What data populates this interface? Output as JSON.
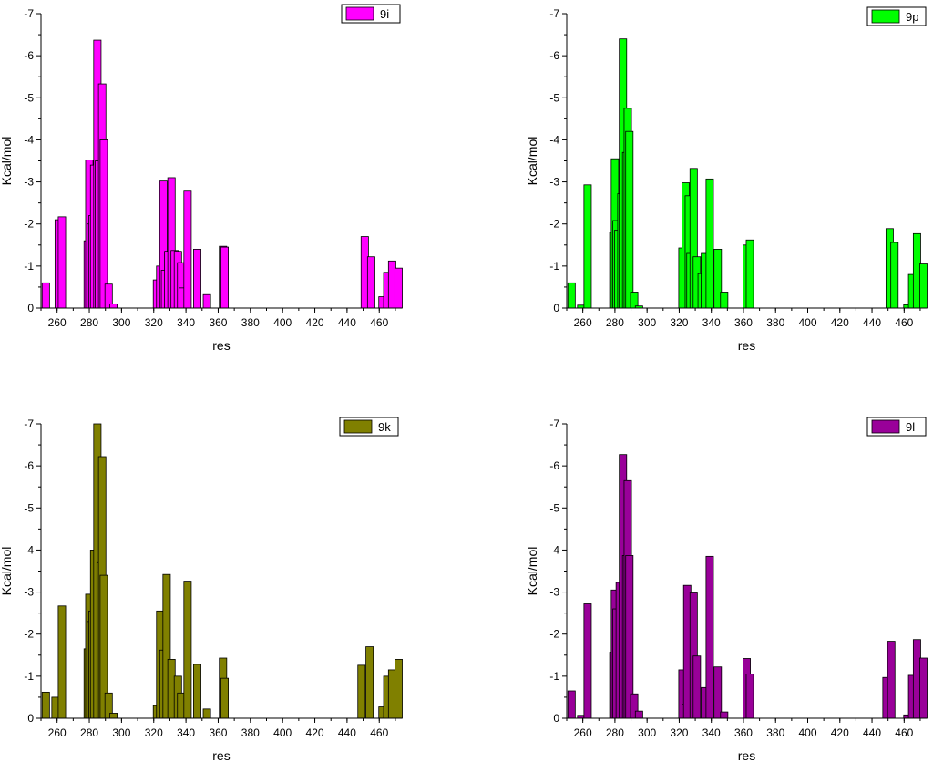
{
  "chart_data": [
    {
      "type": "bar",
      "legend": "9i",
      "legend_position": "top-right",
      "color": "#ff00ff",
      "xlabel": "res",
      "ylabel": "Kcal/mol",
      "xlim": [
        250,
        474
      ],
      "ylim": [
        0,
        -7
      ],
      "xticks": [
        "260",
        "280",
        "300",
        "320",
        "340",
        "360",
        "380",
        "400",
        "420",
        "440",
        "460"
      ],
      "yticks": [
        "0",
        "-1",
        "-2",
        "-3",
        "-4",
        "-5",
        "-6",
        "-7"
      ],
      "bars": [
        {
          "x": 253,
          "y": -0.6
        },
        {
          "x": 261,
          "y": -2.1
        },
        {
          "x": 263,
          "y": -2.17
        },
        {
          "x": 279,
          "y": -1.6
        },
        {
          "x": 280,
          "y": -3.52
        },
        {
          "x": 281,
          "y": -2.0
        },
        {
          "x": 282,
          "y": -2.2
        },
        {
          "x": 283,
          "y": -3.4
        },
        {
          "x": 285,
          "y": -6.37
        },
        {
          "x": 286,
          "y": -3.5
        },
        {
          "x": 288,
          "y": -5.33
        },
        {
          "x": 289,
          "y": -4.0
        },
        {
          "x": 292,
          "y": -0.57
        },
        {
          "x": 295,
          "y": -0.1
        },
        {
          "x": 322,
          "y": -0.67
        },
        {
          "x": 324,
          "y": -1.0
        },
        {
          "x": 326,
          "y": -3.02
        },
        {
          "x": 327,
          "y": -0.9
        },
        {
          "x": 329,
          "y": -1.35
        },
        {
          "x": 331,
          "y": -3.1
        },
        {
          "x": 333,
          "y": -1.37
        },
        {
          "x": 335,
          "y": -1.35
        },
        {
          "x": 337,
          "y": -1.08
        },
        {
          "x": 338,
          "y": -0.48
        },
        {
          "x": 341,
          "y": -2.78
        },
        {
          "x": 347,
          "y": -1.4
        },
        {
          "x": 353,
          "y": -0.32
        },
        {
          "x": 363,
          "y": -1.47
        },
        {
          "x": 364,
          "y": -1.45
        },
        {
          "x": 451,
          "y": -1.7
        },
        {
          "x": 455,
          "y": -1.22
        },
        {
          "x": 462,
          "y": -0.27
        },
        {
          "x": 465,
          "y": -0.85
        },
        {
          "x": 468,
          "y": -1.12
        },
        {
          "x": 472,
          "y": -0.95
        }
      ]
    },
    {
      "type": "bar",
      "legend": "9p",
      "legend_position": "top-right",
      "color": "#00ff00",
      "xlabel": "res",
      "ylabel": "Kcal/mol",
      "xlim": [
        250,
        474
      ],
      "ylim": [
        0,
        -7
      ],
      "xticks": [
        "260",
        "280",
        "300",
        "320",
        "340",
        "360",
        "380",
        "400",
        "420",
        "440",
        "460"
      ],
      "yticks": [
        "0",
        "-1",
        "-2",
        "-3",
        "-4",
        "-5",
        "-6",
        "-7"
      ],
      "bars": [
        {
          "x": 253,
          "y": -0.6
        },
        {
          "x": 259,
          "y": -0.07
        },
        {
          "x": 263,
          "y": -2.93
        },
        {
          "x": 279,
          "y": -1.8
        },
        {
          "x": 280,
          "y": -3.55
        },
        {
          "x": 281,
          "y": -2.08
        },
        {
          "x": 282,
          "y": -1.85
        },
        {
          "x": 284,
          "y": -2.72
        },
        {
          "x": 285,
          "y": -6.4
        },
        {
          "x": 287,
          "y": -3.7
        },
        {
          "x": 288,
          "y": -4.75
        },
        {
          "x": 289,
          "y": -4.2
        },
        {
          "x": 292,
          "y": -0.38
        },
        {
          "x": 295,
          "y": -0.05
        },
        {
          "x": 322,
          "y": -1.43
        },
        {
          "x": 324,
          "y": -2.98
        },
        {
          "x": 326,
          "y": -2.67
        },
        {
          "x": 327,
          "y": -1.3
        },
        {
          "x": 329,
          "y": -3.32
        },
        {
          "x": 331,
          "y": -1.22
        },
        {
          "x": 334,
          "y": -0.82
        },
        {
          "x": 336,
          "y": -1.3
        },
        {
          "x": 339,
          "y": -3.07
        },
        {
          "x": 344,
          "y": -1.4
        },
        {
          "x": 348,
          "y": -0.38
        },
        {
          "x": 362,
          "y": -1.5
        },
        {
          "x": 364,
          "y": -1.62
        },
        {
          "x": 451,
          "y": -1.89
        },
        {
          "x": 454,
          "y": -1.56
        },
        {
          "x": 462,
          "y": -0.08
        },
        {
          "x": 465,
          "y": -0.8
        },
        {
          "x": 468,
          "y": -1.77
        },
        {
          "x": 472,
          "y": -1.05
        }
      ]
    },
    {
      "type": "bar",
      "legend": "9k",
      "legend_position": "top-right",
      "color": "#808000",
      "xlabel": "res",
      "ylabel": "Kcal/mol",
      "xlim": [
        250,
        474
      ],
      "ylim": [
        0,
        -7
      ],
      "xticks": [
        "260",
        "280",
        "300",
        "320",
        "340",
        "360",
        "380",
        "400",
        "420",
        "440",
        "460"
      ],
      "yticks": [
        "0",
        "-1",
        "-2",
        "-3",
        "-4",
        "-5",
        "-6",
        "-7"
      ],
      "bars": [
        {
          "x": 253,
          "y": -0.62
        },
        {
          "x": 259,
          "y": -0.5
        },
        {
          "x": 263,
          "y": -2.67
        },
        {
          "x": 279,
          "y": -1.65
        },
        {
          "x": 280,
          "y": -2.95
        },
        {
          "x": 281,
          "y": -2.3
        },
        {
          "x": 282,
          "y": -2.55
        },
        {
          "x": 283,
          "y": -4.0
        },
        {
          "x": 285,
          "y": -7.0
        },
        {
          "x": 287,
          "y": -3.7
        },
        {
          "x": 288,
          "y": -6.22
        },
        {
          "x": 289,
          "y": -3.4
        },
        {
          "x": 292,
          "y": -0.6
        },
        {
          "x": 295,
          "y": -0.12
        },
        {
          "x": 322,
          "y": -0.3
        },
        {
          "x": 324,
          "y": -2.55
        },
        {
          "x": 326,
          "y": -1.62
        },
        {
          "x": 328,
          "y": -3.42
        },
        {
          "x": 331,
          "y": -1.4
        },
        {
          "x": 335,
          "y": -1.0
        },
        {
          "x": 337,
          "y": -0.6
        },
        {
          "x": 341,
          "y": -3.26
        },
        {
          "x": 347,
          "y": -1.28
        },
        {
          "x": 353,
          "y": -0.22
        },
        {
          "x": 363,
          "y": -1.43
        },
        {
          "x": 364,
          "y": -0.95
        },
        {
          "x": 449,
          "y": -1.26
        },
        {
          "x": 454,
          "y": -1.7
        },
        {
          "x": 462,
          "y": -0.27
        },
        {
          "x": 465,
          "y": -1.0
        },
        {
          "x": 468,
          "y": -1.15
        },
        {
          "x": 472,
          "y": -1.4
        }
      ]
    },
    {
      "type": "bar",
      "legend": "9l",
      "legend_position": "top-right",
      "color": "#990099",
      "xlabel": "res",
      "ylabel": "Kcal/mol",
      "xlim": [
        250,
        474
      ],
      "ylim": [
        0,
        -7
      ],
      "xticks": [
        "260",
        "280",
        "300",
        "320",
        "340",
        "360",
        "380",
        "400",
        "420",
        "440",
        "460"
      ],
      "yticks": [
        "0",
        "-1",
        "-2",
        "-3",
        "-4",
        "-5",
        "-6",
        "-7"
      ],
      "bars": [
        {
          "x": 253,
          "y": -0.65
        },
        {
          "x": 259,
          "y": -0.07
        },
        {
          "x": 263,
          "y": -2.72
        },
        {
          "x": 279,
          "y": -1.57
        },
        {
          "x": 280,
          "y": -3.05
        },
        {
          "x": 281,
          "y": -2.6
        },
        {
          "x": 283,
          "y": -3.23
        },
        {
          "x": 285,
          "y": -6.27
        },
        {
          "x": 287,
          "y": -3.87
        },
        {
          "x": 288,
          "y": -5.65
        },
        {
          "x": 289,
          "y": -3.87
        },
        {
          "x": 292,
          "y": -0.58
        },
        {
          "x": 295,
          "y": -0.17
        },
        {
          "x": 322,
          "y": -1.15
        },
        {
          "x": 324,
          "y": -0.33
        },
        {
          "x": 325,
          "y": -3.16
        },
        {
          "x": 329,
          "y": -2.98
        },
        {
          "x": 331,
          "y": -1.48
        },
        {
          "x": 336,
          "y": -0.73
        },
        {
          "x": 339,
          "y": -3.85
        },
        {
          "x": 344,
          "y": -1.22
        },
        {
          "x": 348,
          "y": -0.15
        },
        {
          "x": 362,
          "y": -1.42
        },
        {
          "x": 364,
          "y": -1.05
        },
        {
          "x": 449,
          "y": -0.97
        },
        {
          "x": 452,
          "y": -1.83
        },
        {
          "x": 462,
          "y": -0.08
        },
        {
          "x": 465,
          "y": -1.02
        },
        {
          "x": 468,
          "y": -1.87
        },
        {
          "x": 472,
          "y": -1.43
        }
      ]
    }
  ]
}
